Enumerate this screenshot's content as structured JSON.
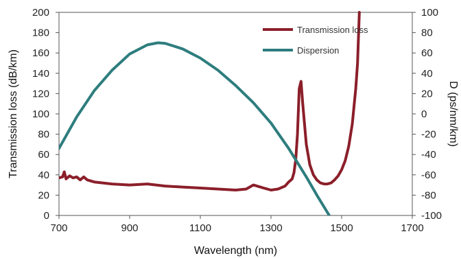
{
  "chart_data": {
    "type": "line",
    "title": "",
    "xlabel": "Wavelength (nm)",
    "ylabel_left": "Transmission loss (dB/km)",
    "ylabel_right": "D (ps/nm/km)",
    "xlim": [
      700,
      1700
    ],
    "ylim_left": [
      0,
      200
    ],
    "ylim_right": [
      -100,
      100
    ],
    "x_ticks": [
      "700",
      "900",
      "1100",
      "1300",
      "1500",
      "1700"
    ],
    "y_left_ticks": [
      "0",
      "20",
      "40",
      "60",
      "80",
      "100",
      "120",
      "140",
      "160",
      "180",
      "200"
    ],
    "y_right_ticks": [
      "-100",
      "-80",
      "-60",
      "-40",
      "-20",
      "0",
      "20",
      "40",
      "60",
      "80",
      "100"
    ],
    "grid": false,
    "legend_position": "top-right",
    "series": [
      {
        "name": "Transmission loss",
        "axis": "left",
        "color": "#8b1f2a",
        "x": [
          700,
          710,
          715,
          720,
          730,
          740,
          750,
          760,
          770,
          780,
          800,
          850,
          900,
          950,
          1000,
          1050,
          1100,
          1150,
          1200,
          1230,
          1250,
          1270,
          1300,
          1320,
          1340,
          1350,
          1360,
          1365,
          1370,
          1375,
          1380,
          1385,
          1390,
          1400,
          1410,
          1420,
          1430,
          1440,
          1450,
          1460,
          1470,
          1480,
          1490,
          1500,
          1510,
          1520,
          1530,
          1540,
          1545,
          1550
        ],
        "values": [
          37,
          38,
          43,
          36,
          39,
          37,
          38,
          35,
          38,
          35,
          33,
          31,
          30,
          31,
          29,
          28,
          27,
          26,
          25,
          26,
          30,
          28,
          25,
          26,
          29,
          33,
          36,
          42,
          55,
          80,
          125,
          132,
          110,
          70,
          50,
          40,
          35,
          32,
          31,
          31,
          32,
          35,
          39,
          45,
          54,
          68,
          90,
          125,
          150,
          200
        ]
      },
      {
        "name": "Dispersion",
        "axis": "right",
        "color": "#2e7d7e",
        "x": [
          700,
          750,
          800,
          850,
          900,
          950,
          980,
          1000,
          1050,
          1100,
          1150,
          1200,
          1250,
          1300,
          1350,
          1400,
          1430,
          1465
        ],
        "values": [
          -34,
          -3,
          23,
          43,
          59,
          68,
          70,
          69.5,
          64,
          55,
          43,
          28,
          11,
          -9,
          -34,
          -62,
          -80,
          -100
        ]
      }
    ]
  }
}
